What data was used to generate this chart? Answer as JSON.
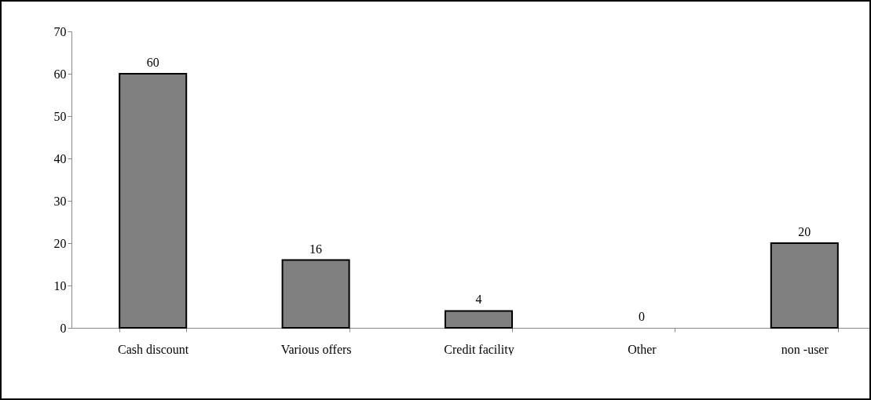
{
  "chart_data": {
    "type": "bar",
    "categories": [
      "Cash discount",
      "Various offers",
      "Credit facility",
      "Other",
      "non -user"
    ],
    "values": [
      60,
      16,
      4,
      0,
      20
    ],
    "color": "#808080",
    "ylim": [
      0,
      70
    ],
    "yticks": [
      0,
      10,
      20,
      30,
      40,
      50,
      60,
      70
    ],
    "grid": false,
    "data_labels": true
  }
}
